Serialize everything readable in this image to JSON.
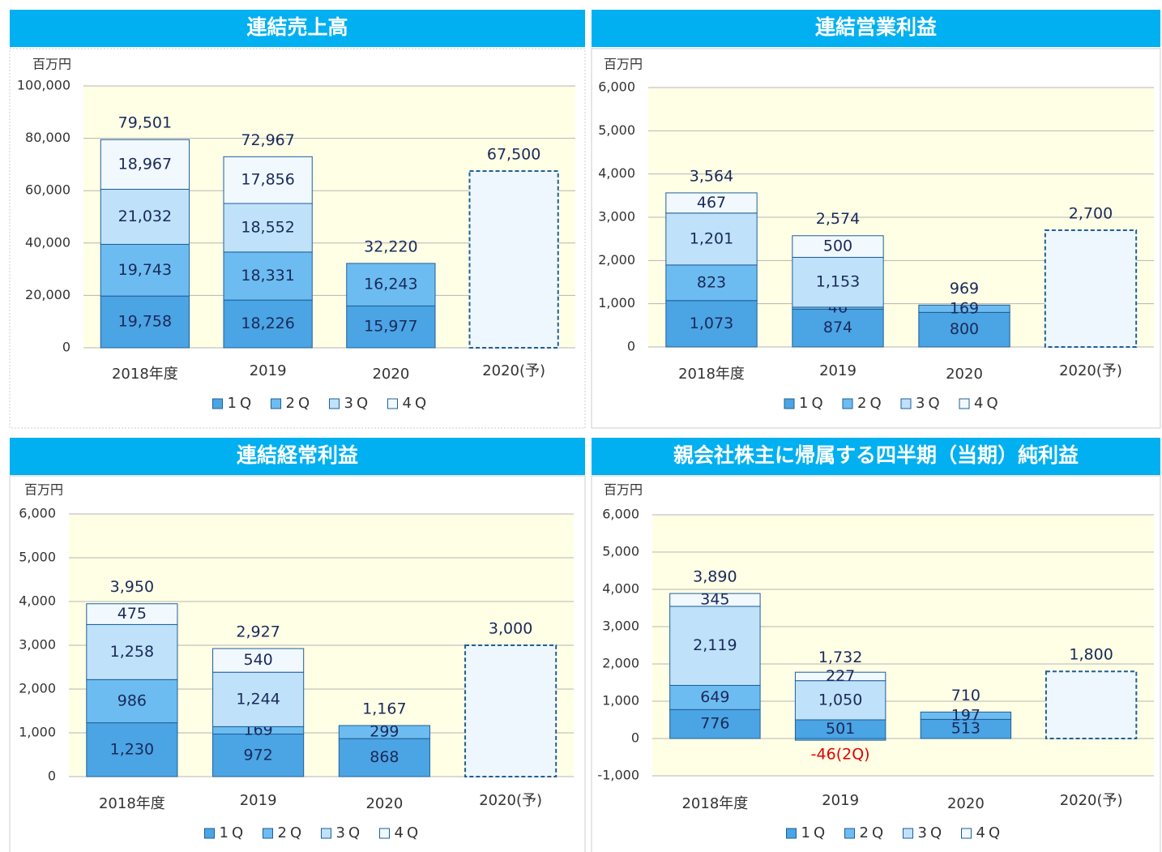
{
  "chart_data": [
    {
      "type": "bar",
      "stacked": true,
      "title": "連結売上高",
      "unit": "百万円",
      "categories": [
        "2018年度",
        "2019",
        "2020",
        "2020(予)"
      ],
      "series": [
        {
          "name": "1Q",
          "color": "#4ba4e4",
          "values": [
            19758,
            18226,
            15977,
            null
          ],
          "value_labels": [
            "19,758",
            "18,226",
            "15,977",
            null
          ]
        },
        {
          "name": "2Q",
          "color": "#6dbcf1",
          "values": [
            19743,
            18331,
            16243,
            null
          ],
          "value_labels": [
            "19,743",
            "18,331",
            "16,243",
            null
          ]
        },
        {
          "name": "3Q",
          "color": "#bfe1fa",
          "values": [
            21032,
            18552,
            null,
            null
          ],
          "value_labels": [
            "21,032",
            "18,552",
            null,
            null
          ]
        },
        {
          "name": "4Q",
          "color": "#f1f8fe",
          "values": [
            18967,
            17856,
            null,
            null
          ],
          "value_labels": [
            "18,967",
            "17,856",
            null,
            null
          ]
        }
      ],
      "totals": {
        "values": [
          79501,
          72967,
          32220,
          67500
        ],
        "value_labels": [
          "79,501",
          "72,967",
          "32,220",
          "67,500"
        ]
      },
      "forecast_color": "#eef7fd",
      "edge_color": "#1f5f96",
      "plot_color": "#ffffe6",
      "grid": true,
      "ylim": [
        0,
        100000
      ],
      "yticks": [
        0,
        {
          "value": 20000,
          "label": "20,000"
        },
        {
          "value": 40000,
          "label": "40,000"
        },
        {
          "value": 60000,
          "label": "60,000"
        },
        {
          "value": 80000,
          "label": "80,000"
        },
        {
          "value": 100000,
          "label": "100,000"
        }
      ]
    },
    {
      "type": "bar",
      "stacked": true,
      "title": "連結営業利益",
      "unit": "百万円",
      "categories": [
        "2018年度",
        "2019",
        "2020",
        "2020(予)"
      ],
      "series": [
        {
          "name": "1Q",
          "color": "#4ba4e4",
          "values": [
            1073,
            874,
            800,
            null
          ],
          "value_labels": [
            "1,073",
            "874",
            "800",
            null
          ]
        },
        {
          "name": "2Q",
          "color": "#6dbcf1",
          "values": [
            823,
            46,
            169,
            null
          ],
          "value_labels": [
            "823",
            "46",
            "169",
            null
          ]
        },
        {
          "name": "3Q",
          "color": "#bfe1fa",
          "values": [
            1201,
            1153,
            null,
            null
          ],
          "value_labels": [
            "1,201",
            "1,153",
            null,
            null
          ]
        },
        {
          "name": "4Q",
          "color": "#f1f8fe",
          "values": [
            467,
            500,
            null,
            null
          ],
          "value_labels": [
            "467",
            "500",
            null,
            null
          ]
        }
      ],
      "totals": {
        "values": [
          3564,
          2574,
          969,
          2700
        ],
        "value_labels": [
          "3,564",
          "2,574",
          "969",
          "2,700"
        ]
      },
      "forecast_color": "#eef7fd",
      "edge_color": "#1f5f96",
      "plot_color": "#ffffe6",
      "grid": true,
      "ylim": [
        0,
        6000
      ],
      "yticks": [
        0,
        {
          "value": 1000,
          "label": "1,000"
        },
        {
          "value": 2000,
          "label": "2,000"
        },
        {
          "value": 3000,
          "label": "3,000"
        },
        {
          "value": 4000,
          "label": "4,000"
        },
        {
          "value": 5000,
          "label": "5,000"
        },
        {
          "value": 6000,
          "label": "6,000"
        }
      ]
    },
    {
      "type": "bar",
      "stacked": true,
      "title": "連結経常利益",
      "unit": "百万円",
      "categories": [
        "2018年度",
        "2019",
        "2020",
        "2020(予)"
      ],
      "series": [
        {
          "name": "1Q",
          "color": "#4ba4e4",
          "values": [
            1230,
            972,
            868,
            null
          ],
          "value_labels": [
            "1,230",
            "972",
            "868",
            null
          ]
        },
        {
          "name": "2Q",
          "color": "#6dbcf1",
          "values": [
            986,
            169,
            299,
            null
          ],
          "value_labels": [
            "986",
            "169",
            "299",
            null
          ]
        },
        {
          "name": "3Q",
          "color": "#bfe1fa",
          "values": [
            1258,
            1244,
            null,
            null
          ],
          "value_labels": [
            "1,258",
            "1,244",
            null,
            null
          ]
        },
        {
          "name": "4Q",
          "color": "#f1f8fe",
          "values": [
            475,
            540,
            null,
            null
          ],
          "value_labels": [
            "475",
            "540",
            null,
            null
          ]
        }
      ],
      "totals": {
        "values": [
          3950,
          2927,
          1167,
          3000
        ],
        "value_labels": [
          "3,950",
          "2,927",
          "1,167",
          "3,000"
        ]
      },
      "forecast_color": "#eef7fd",
      "edge_color": "#1f5f96",
      "plot_color": "#ffffe6",
      "grid": true,
      "ylim": [
        0,
        6000
      ],
      "yticks": [
        0,
        {
          "value": 1000,
          "label": "1,000"
        },
        {
          "value": 2000,
          "label": "2,000"
        },
        {
          "value": 3000,
          "label": "3,000"
        },
        {
          "value": 4000,
          "label": "4,000"
        },
        {
          "value": 5000,
          "label": "5,000"
        },
        {
          "value": 6000,
          "label": "6,000"
        }
      ]
    },
    {
      "type": "bar",
      "stacked": true,
      "title": "親会社株主に帰属する四半期（当期）純利益",
      "unit": "百万円",
      "categories": [
        "2018年度",
        "2019",
        "2020",
        "2020(予)"
      ],
      "series": [
        {
          "name": "1Q",
          "color": "#4ba4e4",
          "values": [
            776,
            501,
            513,
            null
          ],
          "value_labels": [
            "776",
            "501",
            "513",
            null
          ]
        },
        {
          "name": "2Q",
          "color": "#6dbcf1",
          "values": [
            649,
            -46,
            197,
            null
          ],
          "value_labels": [
            "649",
            "-46(2Q)",
            "197",
            null
          ]
        },
        {
          "name": "3Q",
          "color": "#bfe1fa",
          "values": [
            2119,
            1050,
            null,
            null
          ],
          "value_labels": [
            "2,119",
            "1,050",
            null,
            null
          ]
        },
        {
          "name": "4Q",
          "color": "#f1f8fe",
          "values": [
            345,
            227,
            null,
            null
          ],
          "value_labels": [
            "345",
            "227",
            null,
            null
          ]
        }
      ],
      "totals": {
        "values": [
          3890,
          1732,
          710,
          1800
        ],
        "value_labels": [
          "3,890",
          "1,732",
          "710",
          "1,800"
        ]
      },
      "forecast_color": "#eef7fd",
      "edge_color": "#1f5f96",
      "plot_color": "#ffffe6",
      "negative_label_color": "#e00000",
      "grid": true,
      "ylim": [
        -1000,
        6000
      ],
      "yticks": [
        {
          "value": -1000,
          "label": "-1,000"
        },
        0,
        {
          "value": 1000,
          "label": "1,000"
        },
        {
          "value": 2000,
          "label": "2,000"
        },
        {
          "value": 3000,
          "label": "3,000"
        },
        {
          "value": 4000,
          "label": "4,000"
        },
        {
          "value": 5000,
          "label": "5,000"
        },
        {
          "value": 6000,
          "label": "6,000"
        }
      ]
    }
  ]
}
